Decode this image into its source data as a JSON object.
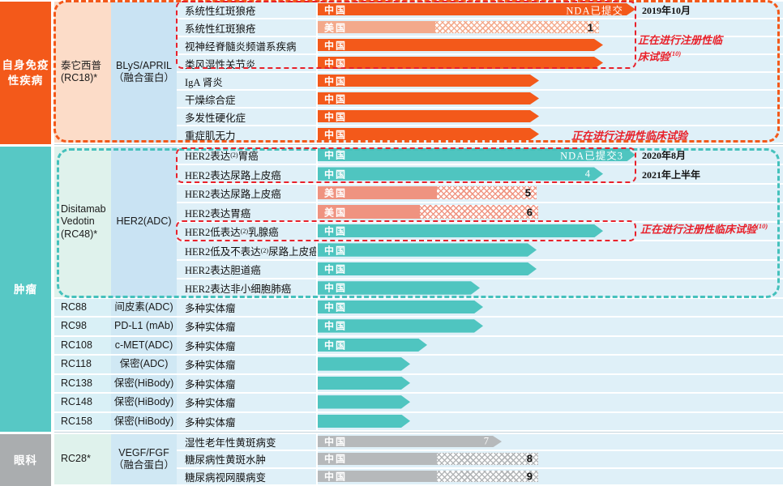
{
  "colors": {
    "orange": "#F3591A",
    "orange_light": "#F3A98B",
    "peach_cell": "#FCDCC8",
    "teal": "#4FC5C0",
    "teal_category": "#57C8C5",
    "mint_cell": "#DFF2EC",
    "salmon": "#EF9380",
    "gray_bar": "#B6B9BB",
    "gray_category": "#AAADAF",
    "blue_cell": "#C9E3F3",
    "row_background": "#DFF0F8",
    "red_annotation": "#E8212B"
  },
  "sections": [
    {
      "name": "autoimmune",
      "category_lines": [
        "自身免疫",
        "性疾病"
      ],
      "groups": [
        {
          "code": "RC18",
          "cell_style": "peach",
          "target_style": "blue",
          "drug_lines": [
            "泰它西普",
            "(RC18)*"
          ],
          "target_lines": [
            "BLyS/APRIL",
            "（融合蛋白）"
          ],
          "rows": [
            {
              "indication": "系统性红斑狼疮",
              "region": "中国",
              "bar": {
                "style": "orange",
                "solid": 392,
                "hatch": 0,
                "tip": true,
                "end_label": "NDA已提交"
              },
              "note": "2019年10月"
            },
            {
              "indication": "系统性红斑狼疮",
              "region": "美国",
              "bar": {
                "style": "orange-light",
                "solid": 145,
                "hatch": 202,
                "tip": false,
                "num": "1"
              }
            },
            {
              "indication": "视神经脊髓炎频谱系疾病",
              "region": "中国",
              "bar": {
                "style": "orange",
                "solid": 352,
                "hatch": 0,
                "tip": true
              }
            },
            {
              "indication": "类风湿性关节炎",
              "region": "中国",
              "bar": {
                "style": "orange",
                "solid": 352,
                "hatch": 0,
                "tip": true
              }
            },
            {
              "indication": "IgA 肾炎",
              "region": "中国",
              "bar": {
                "style": "orange",
                "solid": 273,
                "hatch": 0,
                "tip": true
              }
            },
            {
              "indication": "干燥综合症",
              "region": "中国",
              "bar": {
                "style": "orange",
                "solid": 273,
                "hatch": 0,
                "tip": true
              }
            },
            {
              "indication": "多发性硬化症",
              "region": "中国",
              "bar": {
                "style": "orange",
                "solid": 273,
                "hatch": 0,
                "tip": true
              }
            },
            {
              "indication": "重症肌无力",
              "region": "中国",
              "bar": {
                "style": "orange",
                "solid": 273,
                "hatch": 0,
                "tip": true
              }
            }
          ]
        }
      ]
    },
    {
      "name": "oncology",
      "category_lines": [
        "肿瘤"
      ],
      "groups": [
        {
          "code": "RC48",
          "cell_style": "mint",
          "target_style": "blue",
          "drug_lines": [
            "Disitamab",
            "Vedotin",
            "(RC48)*"
          ],
          "target_lines": [
            "HER2(ADC)"
          ],
          "rows": [
            {
              "indication": "HER2表达",
              "indication_sup": "(2)",
              "indication_post": "胃癌",
              "region": "中国",
              "bar": {
                "style": "teal",
                "solid": 392,
                "hatch": 0,
                "tip": true,
                "end_label": "NDA已提交3"
              },
              "note": "2020年8月"
            },
            {
              "indication": "HER2表达尿路上皮癌",
              "region": "中国",
              "bar": {
                "style": "teal",
                "solid": 352,
                "hatch": 0,
                "tip": true,
                "end_label": "4"
              },
              "note": "2021年上半年"
            },
            {
              "indication": "HER2表达尿路上皮癌",
              "region": "美国",
              "bar": {
                "style": "salmon",
                "solid": 147,
                "hatch": 123,
                "tip": false,
                "num": "5"
              }
            },
            {
              "indication": "HER2表达胃癌",
              "region": "美国",
              "bar": {
                "style": "salmon",
                "solid": 126,
                "hatch": 146,
                "tip": false,
                "num": "6"
              }
            },
            {
              "indication": "HER2低表达",
              "indication_sup": "(2)",
              "indication_post": "乳腺癌",
              "region": "中国",
              "bar": {
                "style": "teal",
                "solid": 352,
                "hatch": 0,
                "tip": true
              }
            },
            {
              "indication": "HER2低及不表达",
              "indication_sup": "(2)",
              "indication_post": "尿路上皮癌",
              "region": "中国",
              "bar": {
                "style": "teal",
                "solid": 270,
                "hatch": 0,
                "tip": true
              }
            },
            {
              "indication": "HER2表达胆道癌",
              "region": "中国",
              "bar": {
                "style": "teal",
                "solid": 270,
                "hatch": 0,
                "tip": true
              }
            },
            {
              "indication": "HER2表达非小细胞肺癌",
              "region": "中国",
              "bar": {
                "style": "teal",
                "solid": 200,
                "hatch": 0,
                "tip": true
              }
            }
          ]
        },
        {
          "code": "RC88",
          "cell_style": "cyan",
          "target_style": "lightblue",
          "drug_lines": [
            "RC88"
          ],
          "target_lines": [
            "间皮素(ADC)"
          ],
          "rows": [
            {
              "indication": "多种实体瘤",
              "region": "中国",
              "bar": {
                "style": "teal",
                "solid": 204,
                "hatch": 0,
                "tip": true
              }
            }
          ]
        },
        {
          "code": "RC98",
          "cell_style": "cyan",
          "target_style": "lightblue",
          "drug_lines": [
            "RC98"
          ],
          "target_lines": [
            "PD-L1 (mAb)"
          ],
          "rows": [
            {
              "indication": "多种实体瘤",
              "region": "中国",
              "bar": {
                "style": "teal",
                "solid": 204,
                "hatch": 0,
                "tip": true
              }
            }
          ]
        },
        {
          "code": "RC108",
          "cell_style": "cyan",
          "target_style": "lightblue",
          "drug_lines": [
            "RC108"
          ],
          "target_lines": [
            "c-MET(ADC)"
          ],
          "rows": [
            {
              "indication": "多种实体瘤",
              "region": "中国",
              "bar": {
                "style": "teal",
                "solid": 135,
                "hatch": 0,
                "tip": true
              }
            }
          ]
        },
        {
          "code": "RC118",
          "cell_style": "cyan",
          "target_style": "lightblue",
          "drug_lines": [
            "RC118"
          ],
          "target_lines": [
            "保密(ADC)"
          ],
          "rows": [
            {
              "indication": "多种实体瘤",
              "region": "",
              "bar": {
                "style": "teal",
                "solid": 114,
                "hatch": 0,
                "tip": true
              }
            }
          ]
        },
        {
          "code": "RC138",
          "cell_style": "cyan",
          "target_style": "lightblue",
          "drug_lines": [
            "RC138"
          ],
          "target_lines": [
            "保密(HiBody)"
          ],
          "rows": [
            {
              "indication": "多种实体瘤",
              "region": "",
              "bar": {
                "style": "teal",
                "solid": 114,
                "hatch": 0,
                "tip": true
              }
            }
          ]
        },
        {
          "code": "RC148",
          "cell_style": "cyan",
          "target_style": "lightblue",
          "drug_lines": [
            "RC148"
          ],
          "target_lines": [
            "保密(HiBody)"
          ],
          "rows": [
            {
              "indication": "多种实体瘤",
              "region": "",
              "bar": {
                "style": "teal",
                "solid": 114,
                "hatch": 0,
                "tip": true
              }
            }
          ]
        },
        {
          "code": "RC158",
          "cell_style": "cyan",
          "target_style": "lightblue",
          "drug_lines": [
            "RC158"
          ],
          "target_lines": [
            "保密(HiBody)"
          ],
          "rows": [
            {
              "indication": "多种实体瘤",
              "region": "",
              "bar": {
                "style": "teal",
                "solid": 114,
                "hatch": 0,
                "tip": true
              }
            }
          ]
        }
      ]
    },
    {
      "name": "eye",
      "category_lines": [
        "眼科"
      ],
      "groups": [
        {
          "code": "RC28",
          "cell_style": "mint",
          "target_style": "lightblue",
          "drug_lines": [
            "RC28*"
          ],
          "target_lines": [
            "VEGF/FGF",
            "（融合蛋白）"
          ],
          "rows": [
            {
              "indication": "湿性老年性黄斑病变",
              "region": "中国",
              "bar": {
                "style": "gray",
                "solid": 227,
                "hatch": 0,
                "tip": true,
                "end_label": "7"
              }
            },
            {
              "indication": "糖尿病性黄斑水肿",
              "region": "中国",
              "bar": {
                "style": "gray",
                "solid": 147,
                "hatch": 125,
                "tip": false,
                "num": "8"
              }
            },
            {
              "indication": "糖尿病视网膜病变",
              "region": "中国",
              "bar": {
                "style": "gray",
                "solid": 147,
                "hatch": 125,
                "tip": false,
                "num": "9"
              }
            }
          ]
        }
      ]
    }
  ],
  "red_notes": [
    {
      "lines": [
        "正在进行注册性临",
        "床试验"
      ],
      "sup": "(10)"
    },
    {
      "lines": [
        "正在进行注册性临床试验"
      ],
      "sup": ""
    },
    {
      "lines": [
        "正在进行注册性临床试验"
      ],
      "sup": "(10)"
    }
  ]
}
